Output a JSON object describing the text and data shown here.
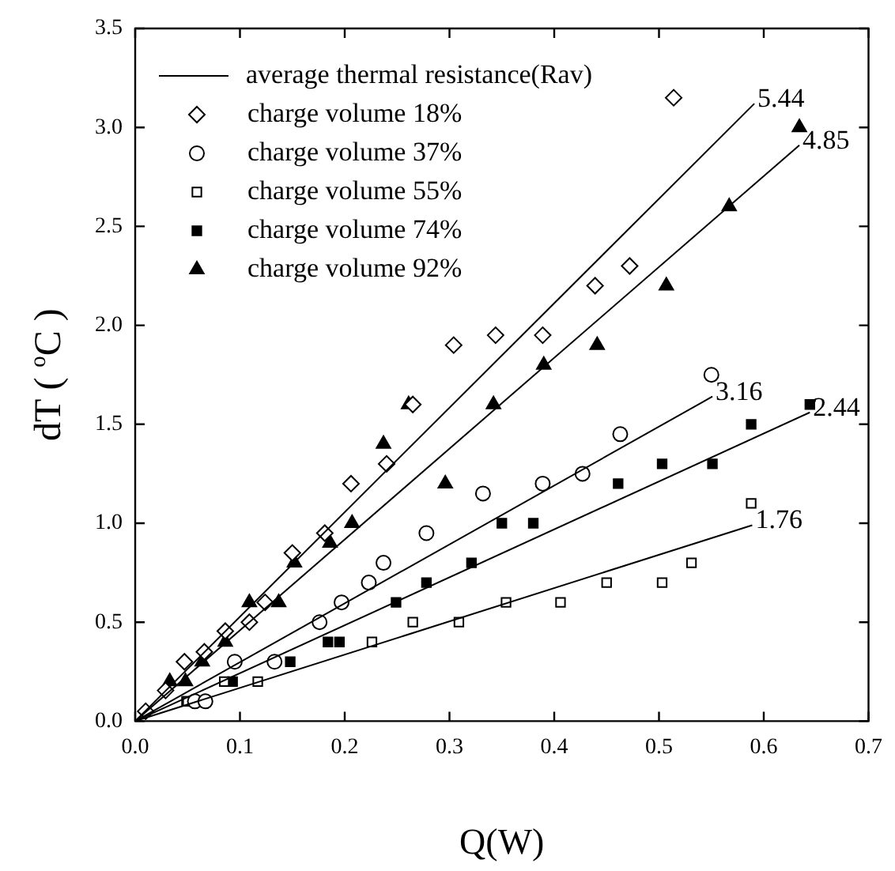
{
  "chart_data": {
    "type": "scatter",
    "xlabel": "Q(W)",
    "ylabel": "dT ( $^{o}$C )",
    "xlim": [
      0,
      0.7
    ],
    "ylim": [
      0,
      3.5
    ],
    "xticks": [
      {
        "value": 0,
        "label": "0.0"
      },
      0.1,
      0.2,
      0.3,
      0.4,
      0.5,
      0.6,
      0.7
    ],
    "yticks": [
      {
        "value": 0,
        "label": "0.0"
      },
      0.5,
      {
        "value": 1,
        "label": "1.0"
      },
      1.5,
      {
        "value": 2,
        "label": "2.0"
      },
      2.5,
      {
        "value": 3,
        "label": "3.0"
      },
      3.5
    ],
    "grid": false,
    "legend": "top left",
    "series": [
      {
        "name": "average thermal resistance(Rav)",
        "type": "line",
        "marker": "none",
        "line_style": "solid",
        "color": "#000000",
        "x": [
          0,
          0.591
        ],
        "values": [
          0,
          3.12
        ]
      },
      {
        "type": "line",
        "marker": "none",
        "line_style": "solid",
        "color": "#000000",
        "x": [
          0,
          0.634
        ],
        "values": [
          0,
          2.91
        ]
      },
      {
        "type": "line",
        "marker": "none",
        "line_style": "solid",
        "color": "#000000",
        "x": [
          0,
          0.551
        ],
        "values": [
          0,
          1.64
        ]
      },
      {
        "type": "line",
        "marker": "none",
        "line_style": "solid",
        "color": "#000000",
        "x": [
          0,
          0.644
        ],
        "values": [
          0,
          1.56
        ]
      },
      {
        "type": "line",
        "marker": "none",
        "line_style": "solid",
        "color": "#000000",
        "x": [
          0,
          0.589
        ],
        "values": [
          0,
          0.99
        ]
      },
      {
        "name": "charge volume 18%",
        "marker": "diamond",
        "color": "#ffffff",
        "x": [
          0.01,
          0.029,
          0.047,
          0.066,
          0.086,
          0.109,
          0.124,
          0.15,
          0.181,
          0.206,
          0.24,
          0.265,
          0.304,
          0.344,
          0.389,
          0.439,
          0.472,
          0.514
        ],
        "values": [
          0.05,
          0.155,
          0.3,
          0.35,
          0.455,
          0.5,
          0.6,
          0.85,
          0.95,
          1.2,
          1.3,
          1.6,
          1.9,
          1.95,
          1.95,
          2.2,
          2.3,
          3.15
        ]
      },
      {
        "name": "charge volume 37%",
        "marker": "circle",
        "color": "#ffffff",
        "x": [
          0.057,
          0.067,
          0.095,
          0.133,
          0.176,
          0.197,
          0.223,
          0.237,
          0.278,
          0.332,
          0.389,
          0.427,
          0.463,
          0.55
        ],
        "values": [
          0.1,
          0.1,
          0.3,
          0.3,
          0.5,
          0.6,
          0.7,
          0.8,
          0.95,
          1.15,
          1.2,
          1.25,
          1.45,
          1.75
        ]
      },
      {
        "name": "charge volume 55%",
        "marker": "square",
        "color": "#ffffff",
        "x": [
          0.05,
          0.085,
          0.117,
          0.226,
          0.265,
          0.309,
          0.354,
          0.406,
          0.45,
          0.503,
          0.531,
          0.588
        ],
        "values": [
          0.1,
          0.2,
          0.2,
          0.4,
          0.5,
          0.5,
          0.6,
          0.6,
          0.7,
          0.7,
          0.8,
          1.1
        ]
      },
      {
        "name": "charge volume 74%",
        "marker": "square",
        "color": "#000000",
        "x": [
          0.049,
          0.093,
          0.148,
          0.184,
          0.195,
          0.249,
          0.278,
          0.321,
          0.35,
          0.38,
          0.461,
          0.503,
          0.551,
          0.588,
          0.644
        ],
        "values": [
          0.1,
          0.2,
          0.3,
          0.4,
          0.4,
          0.6,
          0.7,
          0.8,
          1.0,
          1.0,
          1.2,
          1.3,
          1.3,
          1.5,
          1.6
        ]
      },
      {
        "name": "charge volume 92%",
        "marker": "triangle",
        "color": "#000000",
        "x": [
          0.033,
          0.048,
          0.064,
          0.086,
          0.109,
          0.137,
          0.152,
          0.186,
          0.207,
          0.237,
          0.261,
          0.296,
          0.342,
          0.39,
          0.441,
          0.507,
          0.567,
          0.634
        ],
        "values": [
          0.2,
          0.2,
          0.3,
          0.4,
          0.6,
          0.6,
          0.8,
          0.9,
          1.0,
          1.4,
          1.6,
          1.2,
          1.6,
          1.8,
          1.9,
          2.2,
          2.6,
          3.0
        ]
      }
    ],
    "annotations": [
      {
        "text": "5.44",
        "x": 0.591,
        "y": 3.12
      },
      {
        "text": "4.85",
        "x": 0.634,
        "y": 2.91
      },
      {
        "text": "3.16",
        "x": 0.551,
        "y": 1.64
      },
      {
        "text": "2.44",
        "x": 0.644,
        "y": 1.56
      },
      {
        "text": "1.76",
        "x": 0.589,
        "y": 0.99
      }
    ]
  }
}
